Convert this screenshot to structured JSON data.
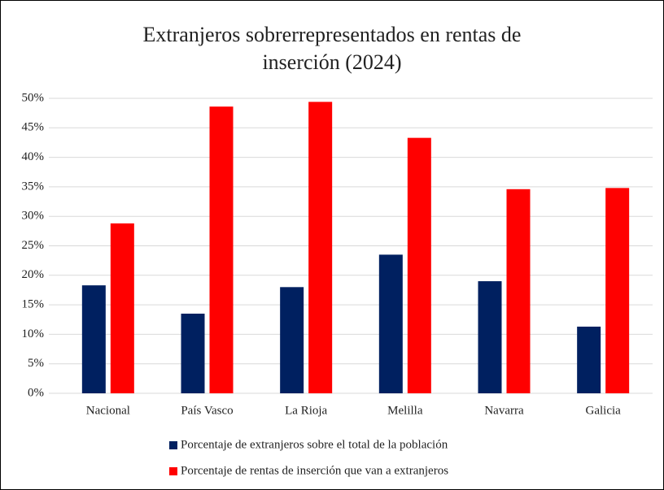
{
  "chart_data": {
    "type": "bar",
    "title": "Extranjeros sobrerrepresentados en rentas de inserción (2024)",
    "categories": [
      "Nacional",
      "País Vasco",
      "La Rioja",
      "Melilla",
      "Navarra",
      "Galicia"
    ],
    "series": [
      {
        "name": "Porcentaje de extranjeros sobre el total de la población",
        "color": "#002060",
        "values": [
          18.3,
          13.5,
          18.0,
          23.5,
          19.0,
          11.3
        ]
      },
      {
        "name": "Porcentaje de rentas de inserción que van a extranjeros",
        "color": "#ff0000",
        "values": [
          28.8,
          48.6,
          49.4,
          43.3,
          34.6,
          34.8
        ]
      }
    ],
    "ylim": [
      0,
      50
    ],
    "yticks": [
      {
        "value": 0,
        "label": "0%"
      },
      {
        "value": 5,
        "label": "5%"
      },
      {
        "value": 10,
        "label": "10%"
      },
      {
        "value": 15,
        "label": "15%"
      },
      {
        "value": 20,
        "label": "20%"
      },
      {
        "value": 25,
        "label": "25%"
      },
      {
        "value": 30,
        "label": "30%"
      },
      {
        "value": 35,
        "label": "35%"
      },
      {
        "value": 40,
        "label": "40%"
      },
      {
        "value": 45,
        "label": "45%"
      },
      {
        "value": 50,
        "label": "50%"
      }
    ],
    "grid": true,
    "legend": "bottom"
  }
}
